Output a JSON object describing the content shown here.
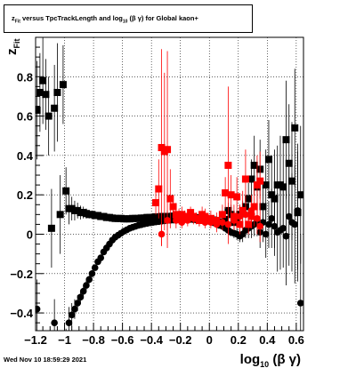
{
  "title": {
    "var": "z",
    "var_sub": "Fit",
    "mid": " versus TpcTrackLength and log",
    "log_sub": "10",
    "arg": "(β  γ)",
    "tail": " for Global kaon+"
  },
  "datestamp": "Wed Nov 10 18:59:29 2021",
  "chart_data": {
    "type": "scatter",
    "xlabel": {
      "main": "log",
      "sub": "10",
      "arg": "(β γ)"
    },
    "ylabel": {
      "main": "z",
      "sub": "Fit"
    },
    "xlim": [
      -1.2,
      0.65
    ],
    "ylim": [
      -0.49,
      1.0
    ],
    "x_ticks": [
      -1.2,
      -1,
      -0.8,
      -0.6,
      -0.4,
      -0.2,
      0,
      0.2,
      0.4,
      0.6
    ],
    "x_tick_labels": [
      "−1.2",
      "−1",
      "−0.8",
      "−0.6",
      "−0.4",
      "−0.2",
      "0",
      "0.2",
      "0.4",
      "0.6"
    ],
    "y_ticks": [
      -0.4,
      -0.2,
      0,
      0.2,
      0.4,
      0.6,
      0.8
    ],
    "y_tick_labels": [
      "−0.4",
      "−0.2",
      "0",
      "0.2",
      "0.4",
      "0.6",
      "0.8"
    ],
    "grid": true,
    "series": [
      {
        "color": "#000000",
        "marker": "square",
        "points": [
          [
            -1.19,
            0.63,
            0.25
          ],
          [
            -1.17,
            0.72,
            0.2
          ],
          [
            -1.15,
            0.78,
            0.22
          ],
          [
            -1.13,
            0.71,
            0.18
          ],
          [
            -1.11,
            0.6,
            0.2
          ],
          [
            -1.09,
            0.03,
            0.2
          ],
          [
            -1.07,
            0.64,
            0.22
          ],
          [
            -1.05,
            0.72,
            0.25
          ],
          [
            -1.03,
            0.1,
            0.2
          ],
          [
            -1.01,
            0.76,
            0.2
          ],
          [
            -0.99,
            0.22,
            0.12
          ],
          [
            -0.97,
            0.13,
            0.08
          ],
          [
            -0.95,
            0.13,
            0.06
          ],
          [
            -0.93,
            0.12,
            0.05
          ],
          [
            -0.91,
            0.12,
            0.04
          ],
          [
            -0.89,
            0.11,
            0.035
          ],
          [
            -0.87,
            0.11,
            0.03
          ],
          [
            -0.85,
            0.105,
            0.025
          ],
          [
            -0.83,
            0.1,
            0.02
          ],
          [
            -0.81,
            0.1,
            0.02
          ],
          [
            -0.79,
            0.095,
            0.015
          ],
          [
            -0.77,
            0.095,
            0.015
          ],
          [
            -0.75,
            0.09,
            0.012
          ],
          [
            -0.73,
            0.09,
            0.01
          ],
          [
            -0.71,
            0.085,
            0.01
          ],
          [
            -0.69,
            0.085,
            0.01
          ],
          [
            -0.67,
            0.082,
            0.01
          ],
          [
            -0.65,
            0.08,
            0.008
          ],
          [
            -0.63,
            0.08,
            0.008
          ],
          [
            -0.61,
            0.08,
            0.008
          ],
          [
            -0.59,
            0.078,
            0.008
          ],
          [
            -0.57,
            0.078,
            0.008
          ],
          [
            -0.55,
            0.078,
            0.008
          ],
          [
            -0.53,
            0.08,
            0.008
          ],
          [
            -0.51,
            0.08,
            0.008
          ],
          [
            -0.49,
            0.08,
            0.008
          ],
          [
            -0.47,
            0.082,
            0.008
          ],
          [
            -0.45,
            0.082,
            0.008
          ],
          [
            -0.43,
            0.085,
            0.008
          ],
          [
            -0.41,
            0.085,
            0.008
          ],
          [
            -0.39,
            0.085,
            0.008
          ],
          [
            -0.37,
            0.088,
            0.008
          ],
          [
            -0.35,
            0.088,
            0.008
          ],
          [
            -0.33,
            0.09,
            0.008
          ],
          [
            -0.31,
            0.09,
            0.008
          ],
          [
            -0.29,
            0.09,
            0.008
          ],
          [
            -0.27,
            0.09,
            0.008
          ],
          [
            -0.25,
            0.092,
            0.008
          ],
          [
            -0.23,
            0.092,
            0.008
          ],
          [
            -0.21,
            0.092,
            0.008
          ],
          [
            -0.19,
            0.092,
            0.008
          ],
          [
            -0.17,
            0.09,
            0.008
          ],
          [
            -0.15,
            0.09,
            0.008
          ],
          [
            -0.13,
            0.088,
            0.008
          ],
          [
            -0.11,
            0.086,
            0.008
          ],
          [
            -0.09,
            0.084,
            0.008
          ],
          [
            -0.07,
            0.082,
            0.008
          ],
          [
            -0.05,
            0.08,
            0.008
          ],
          [
            -0.03,
            0.08,
            0.008
          ],
          [
            -0.01,
            0.078,
            0.01
          ],
          [
            0.01,
            0.076,
            0.01
          ],
          [
            0.03,
            0.072,
            0.01
          ],
          [
            0.05,
            0.065,
            0.012
          ],
          [
            0.07,
            0.06,
            0.012
          ],
          [
            0.09,
            0.062,
            0.015
          ],
          [
            0.11,
            0.075,
            0.015
          ],
          [
            0.13,
            0.12,
            0.04
          ],
          [
            0.15,
            0.1,
            0.05
          ],
          [
            0.17,
            0.06,
            0.04
          ],
          [
            0.19,
            0.08,
            0.04
          ],
          [
            0.21,
            0.1,
            0.05
          ],
          [
            0.23,
            0.12,
            0.05
          ],
          [
            0.25,
            0.14,
            0.06
          ],
          [
            0.27,
            0.18,
            0.08
          ],
          [
            0.29,
            0.28,
            0.1
          ],
          [
            0.31,
            0.35,
            0.15
          ],
          [
            0.33,
            0.24,
            0.12
          ],
          [
            0.35,
            0.33,
            0.15
          ],
          [
            0.37,
            0.14,
            0.1
          ],
          [
            0.39,
            0.25,
            0.18
          ],
          [
            0.41,
            0.38,
            0.2
          ],
          [
            0.43,
            0.2,
            0.2
          ],
          [
            0.45,
            0.18,
            0.25
          ],
          [
            0.47,
            0.25,
            0.2
          ],
          [
            0.49,
            0.25,
            0.25
          ],
          [
            0.51,
            0.24,
            0.25
          ],
          [
            0.53,
            0.48,
            0.3
          ],
          [
            0.55,
            0.36,
            0.3
          ],
          [
            0.57,
            0.27,
            0.3
          ],
          [
            0.59,
            0.54,
            0.3
          ],
          [
            0.61,
            0.11,
            0.35
          ],
          [
            0.63,
            0.2,
            0.35
          ]
        ]
      },
      {
        "color": "#000000",
        "marker": "circle",
        "points": [
          [
            -1.19,
            -0.38,
            0.15
          ],
          [
            -1.07,
            -0.45,
            0.12
          ],
          [
            -0.99,
            -0.58,
            0.1
          ],
          [
            -0.97,
            -0.45,
            0.08
          ],
          [
            -0.95,
            -0.41,
            0.06
          ],
          [
            -0.93,
            -0.38,
            0.05
          ],
          [
            -0.91,
            -0.35,
            0.04
          ],
          [
            -0.89,
            -0.32,
            0.035
          ],
          [
            -0.87,
            -0.29,
            0.03
          ],
          [
            -0.85,
            -0.26,
            0.025
          ],
          [
            -0.83,
            -0.23,
            0.02
          ],
          [
            -0.81,
            -0.2,
            0.018
          ],
          [
            -0.79,
            -0.17,
            0.015
          ],
          [
            -0.77,
            -0.14,
            0.013
          ],
          [
            -0.75,
            -0.12,
            0.012
          ],
          [
            -0.73,
            -0.09,
            0.01
          ],
          [
            -0.71,
            -0.07,
            0.01
          ],
          [
            -0.69,
            -0.05,
            0.01
          ],
          [
            -0.67,
            -0.03,
            0.008
          ],
          [
            -0.65,
            -0.015,
            0.008
          ],
          [
            -0.63,
            -0.005,
            0.008
          ],
          [
            -0.61,
            0.005,
            0.008
          ],
          [
            -0.59,
            0.015,
            0.008
          ],
          [
            -0.57,
            0.022,
            0.008
          ],
          [
            -0.55,
            0.03,
            0.008
          ],
          [
            -0.53,
            0.035,
            0.008
          ],
          [
            -0.51,
            0.04,
            0.008
          ],
          [
            -0.49,
            0.045,
            0.008
          ],
          [
            -0.47,
            0.048,
            0.008
          ],
          [
            -0.45,
            0.052,
            0.008
          ],
          [
            -0.43,
            0.055,
            0.008
          ],
          [
            -0.41,
            0.058,
            0.008
          ],
          [
            -0.39,
            0.06,
            0.008
          ],
          [
            -0.37,
            0.062,
            0.008
          ],
          [
            -0.35,
            0.064,
            0.008
          ],
          [
            -0.33,
            0.066,
            0.008
          ],
          [
            -0.31,
            0.068,
            0.008
          ],
          [
            -0.29,
            0.07,
            0.008
          ],
          [
            -0.27,
            0.071,
            0.008
          ],
          [
            -0.25,
            0.072,
            0.008
          ],
          [
            -0.23,
            0.073,
            0.008
          ],
          [
            -0.21,
            0.074,
            0.008
          ],
          [
            -0.19,
            0.075,
            0.008
          ],
          [
            -0.17,
            0.075,
            0.008
          ],
          [
            -0.15,
            0.075,
            0.008
          ],
          [
            -0.13,
            0.075,
            0.008
          ],
          [
            -0.11,
            0.074,
            0.008
          ],
          [
            -0.09,
            0.073,
            0.008
          ],
          [
            -0.07,
            0.072,
            0.008
          ],
          [
            -0.05,
            0.07,
            0.008
          ],
          [
            -0.03,
            0.068,
            0.01
          ],
          [
            -0.01,
            0.066,
            0.01
          ],
          [
            0.01,
            0.062,
            0.01
          ],
          [
            0.03,
            0.058,
            0.01
          ],
          [
            0.05,
            0.052,
            0.012
          ],
          [
            0.07,
            0.045,
            0.012
          ],
          [
            0.09,
            0.04,
            0.015
          ],
          [
            0.11,
            0.03,
            0.015
          ],
          [
            0.13,
            0.02,
            0.02
          ],
          [
            0.15,
            0.01,
            0.02
          ],
          [
            0.17,
            0.005,
            0.025
          ],
          [
            0.19,
            0.0,
            0.03
          ],
          [
            0.21,
            -0.01,
            0.03
          ],
          [
            0.23,
            0.0,
            0.04
          ],
          [
            0.25,
            0.02,
            0.04
          ],
          [
            0.27,
            0.03,
            0.05
          ],
          [
            0.29,
            0.04,
            0.06
          ],
          [
            0.31,
            0.05,
            0.06
          ],
          [
            0.33,
            0.07,
            0.08
          ],
          [
            0.35,
            0.01,
            0.08
          ],
          [
            0.37,
            0.06,
            0.1
          ],
          [
            0.39,
            0.0,
            0.12
          ],
          [
            0.41,
            0.05,
            0.12
          ],
          [
            0.43,
            0.08,
            0.15
          ],
          [
            0.45,
            0.04,
            0.15
          ],
          [
            0.47,
            0.01,
            0.2
          ],
          [
            0.49,
            0.02,
            0.2
          ],
          [
            0.51,
            0.03,
            0.2
          ],
          [
            0.53,
            -0.01,
            0.25
          ],
          [
            0.55,
            0.09,
            0.25
          ],
          [
            0.57,
            0.06,
            0.25
          ],
          [
            0.59,
            0.05,
            0.3
          ],
          [
            0.61,
            0.12,
            0.3
          ],
          [
            0.63,
            -0.35,
            0.35
          ]
        ]
      },
      {
        "color": "#ff0000",
        "marker": "square",
        "points": [
          [
            -0.37,
            0.16,
            0.06
          ],
          [
            -0.35,
            0.23,
            0.15
          ],
          [
            -0.33,
            0.44,
            0.5
          ],
          [
            -0.31,
            0.42,
            0.4
          ],
          [
            -0.29,
            0.43,
            0.5
          ],
          [
            -0.27,
            0.18,
            0.15
          ],
          [
            -0.25,
            0.14,
            0.06
          ],
          [
            -0.23,
            0.1,
            0.05
          ],
          [
            -0.21,
            0.09,
            0.04
          ],
          [
            -0.19,
            0.1,
            0.04
          ],
          [
            -0.17,
            0.09,
            0.03
          ],
          [
            -0.15,
            0.09,
            0.03
          ],
          [
            -0.13,
            0.11,
            0.03
          ],
          [
            -0.11,
            0.09,
            0.03
          ],
          [
            -0.09,
            0.08,
            0.03
          ],
          [
            -0.07,
            0.07,
            0.03
          ],
          [
            -0.05,
            0.1,
            0.04
          ],
          [
            -0.03,
            0.09,
            0.04
          ],
          [
            0.01,
            0.08,
            0.04
          ],
          [
            0.05,
            0.07,
            0.04
          ],
          [
            0.09,
            0.1,
            0.05
          ],
          [
            0.11,
            0.21,
            0.08
          ],
          [
            0.13,
            0.35,
            0.4
          ],
          [
            0.15,
            0.2,
            0.1
          ],
          [
            0.17,
            0.09,
            0.06
          ],
          [
            0.19,
            0.19,
            0.1
          ],
          [
            0.21,
            0.05,
            0.05
          ],
          [
            0.23,
            0.12,
            0.1
          ],
          [
            0.25,
            0.28,
            0.15
          ],
          [
            0.27,
            0.05,
            0.05
          ],
          [
            0.29,
            0.09,
            0.06
          ],
          [
            0.31,
            0.14,
            0.1
          ],
          [
            0.33,
            0.25,
            0.15
          ],
          [
            0.35,
            0.27,
            0.15
          ]
        ]
      },
      {
        "color": "#ff0000",
        "marker": "circle",
        "points": [
          [
            -0.33,
            0.0,
            0.06
          ],
          [
            -0.29,
            0.07,
            0.05
          ],
          [
            -0.23,
            0.07,
            0.04
          ],
          [
            -0.19,
            0.06,
            0.03
          ],
          [
            -0.15,
            0.07,
            0.03
          ],
          [
            -0.11,
            0.08,
            0.03
          ],
          [
            -0.07,
            0.07,
            0.03
          ],
          [
            -0.03,
            0.06,
            0.03
          ],
          [
            0.01,
            0.06,
            0.03
          ],
          [
            0.05,
            0.05,
            0.04
          ],
          [
            0.09,
            0.06,
            0.04
          ],
          [
            0.13,
            0.05,
            0.05
          ],
          [
            0.17,
            0.07,
            0.05
          ],
          [
            0.21,
            0.09,
            0.06
          ],
          [
            0.25,
            0.1,
            0.06
          ],
          [
            0.29,
            0.12,
            0.08
          ],
          [
            0.33,
            0.08,
            0.08
          ],
          [
            0.35,
            0.04,
            0.08
          ]
        ]
      }
    ]
  }
}
